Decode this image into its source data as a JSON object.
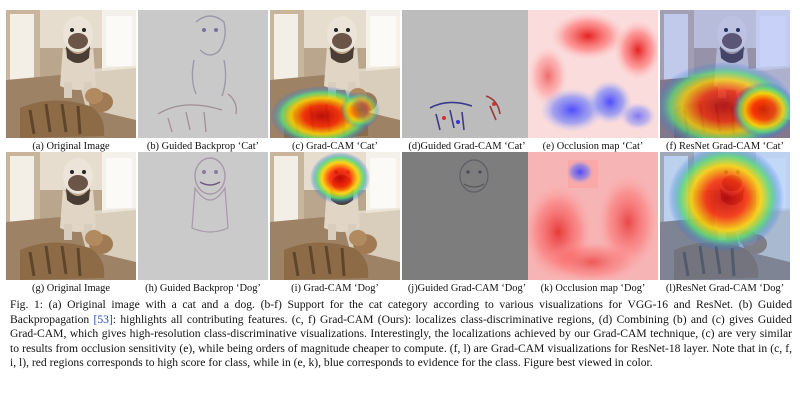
{
  "panels": [
    {
      "id": "a",
      "caption": "(a) Original Image"
    },
    {
      "id": "b",
      "caption": "(b) Guided Backprop ‘Cat’"
    },
    {
      "id": "c",
      "caption": "(c) Grad-CAM ‘Cat’"
    },
    {
      "id": "d",
      "caption": "(d)Guided Grad-CAM ‘Cat’"
    },
    {
      "id": "e",
      "caption": "(e) Occlusion map ‘Cat’"
    },
    {
      "id": "f",
      "caption": "(f) ResNet Grad-CAM ‘Cat’"
    },
    {
      "id": "g",
      "caption": "(g) Original Image"
    },
    {
      "id": "h",
      "caption": "(h) Guided Backprop ‘Dog’"
    },
    {
      "id": "i",
      "caption": "(i) Grad-CAM ‘Dog’"
    },
    {
      "id": "j",
      "caption": "(j)Guided Grad-CAM ‘Dog’"
    },
    {
      "id": "k",
      "caption": "(k) Occlusion map ‘Dog’"
    },
    {
      "id": "l",
      "caption": "(l)ResNet Grad-CAM ‘Dog’"
    }
  ],
  "figure_caption": {
    "part1": "Fig. 1: (a) Original image with a cat and a dog. (b-f) Support for the cat category according to various visualizations for VGG-16 and ResNet. (b) Guided Backpropagation ",
    "ref": "[53]",
    "part2": ": highlights all contributing features. (c, f) Grad-CAM (Ours): localizes class-discriminative regions, (d) Combining (b) and (c) gives Guided Grad-CAM, which gives high-resolution class-discriminative visualizations. Interestingly, the localizations achieved by our Grad-CAM technique, (c) are very similar to results from occlusion sensitivity (e), while being orders of magnitude cheaper to compute. (f, l) are Grad-CAM visualizations for ResNet-18 layer. Note that in (c, f, i, l), red regions corresponds to high score for class, while in (e, k), blue corresponds to evidence for the class. Figure best viewed in color."
  }
}
